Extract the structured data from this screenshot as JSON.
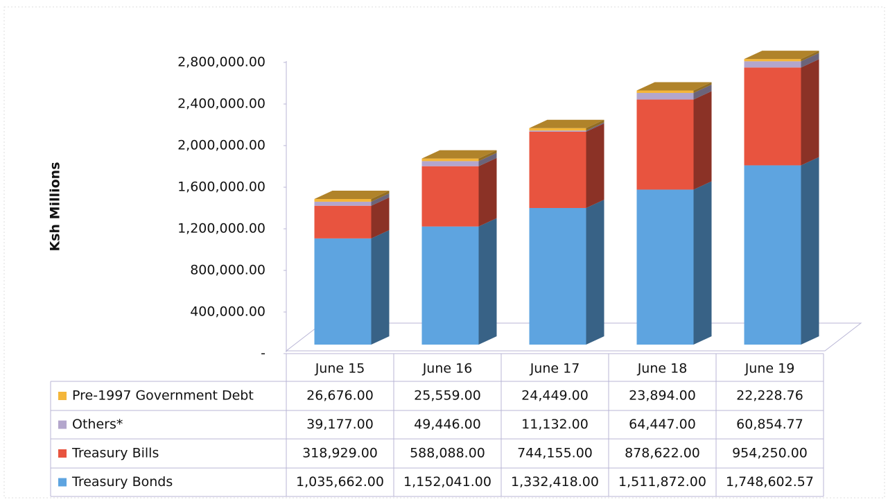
{
  "chart_data": {
    "type": "bar3d_stacked",
    "y_label": "Ksh Millions",
    "categories": [
      "June 15",
      "June 16",
      "June 17",
      "June 18",
      "June 19"
    ],
    "series": [
      {
        "name": "Pre-1997 Government Debt",
        "color": "#f4b63a",
        "values": [
          26676,
          25559,
          24449,
          23894,
          22228.76
        ],
        "value_labels": [
          "26,676.00",
          "25,559.00",
          "24,449.00",
          "23,894.00",
          "22,228.76"
        ]
      },
      {
        "name": "Others*",
        "color": "#b3a6cc",
        "values": [
          39177,
          49446,
          11132,
          64447,
          60854.77
        ],
        "value_labels": [
          "39,177.00",
          "49,446.00",
          "11,132.00",
          "64,447.00",
          "60,854.77"
        ]
      },
      {
        "name": "Treasury Bills",
        "color": "#e8543f",
        "values": [
          318929,
          588088,
          744155,
          878622,
          954250
        ],
        "value_labels": [
          "318,929.00",
          "588,088.00",
          "744,155.00",
          "878,622.00",
          "954,250.00"
        ]
      },
      {
        "name": "Treasury Bonds",
        "color": "#5ea4e0",
        "values": [
          1035662,
          1152041,
          1332418,
          1511872,
          1748602.57
        ],
        "value_labels": [
          "1,035,662.00",
          "1,152,041.00",
          "1,332,418.00",
          "1,511,872.00",
          "1,748,602.57"
        ]
      }
    ],
    "ylim": [
      0,
      2800000
    ],
    "yticks": [
      {
        "value": 0,
        "label": "-"
      },
      {
        "value": 400000,
        "label": "400,000.00"
      },
      {
        "value": 800000,
        "label": "800,000.00"
      },
      {
        "value": 1200000,
        "label": "1,200,000.00"
      },
      {
        "value": 1600000,
        "label": "1,600,000.00"
      },
      {
        "value": 2000000,
        "label": "2,000,000.00"
      },
      {
        "value": 2400000,
        "label": "2,400,000.00"
      },
      {
        "value": 2800000,
        "label": "2,800,000.00"
      }
    ]
  }
}
